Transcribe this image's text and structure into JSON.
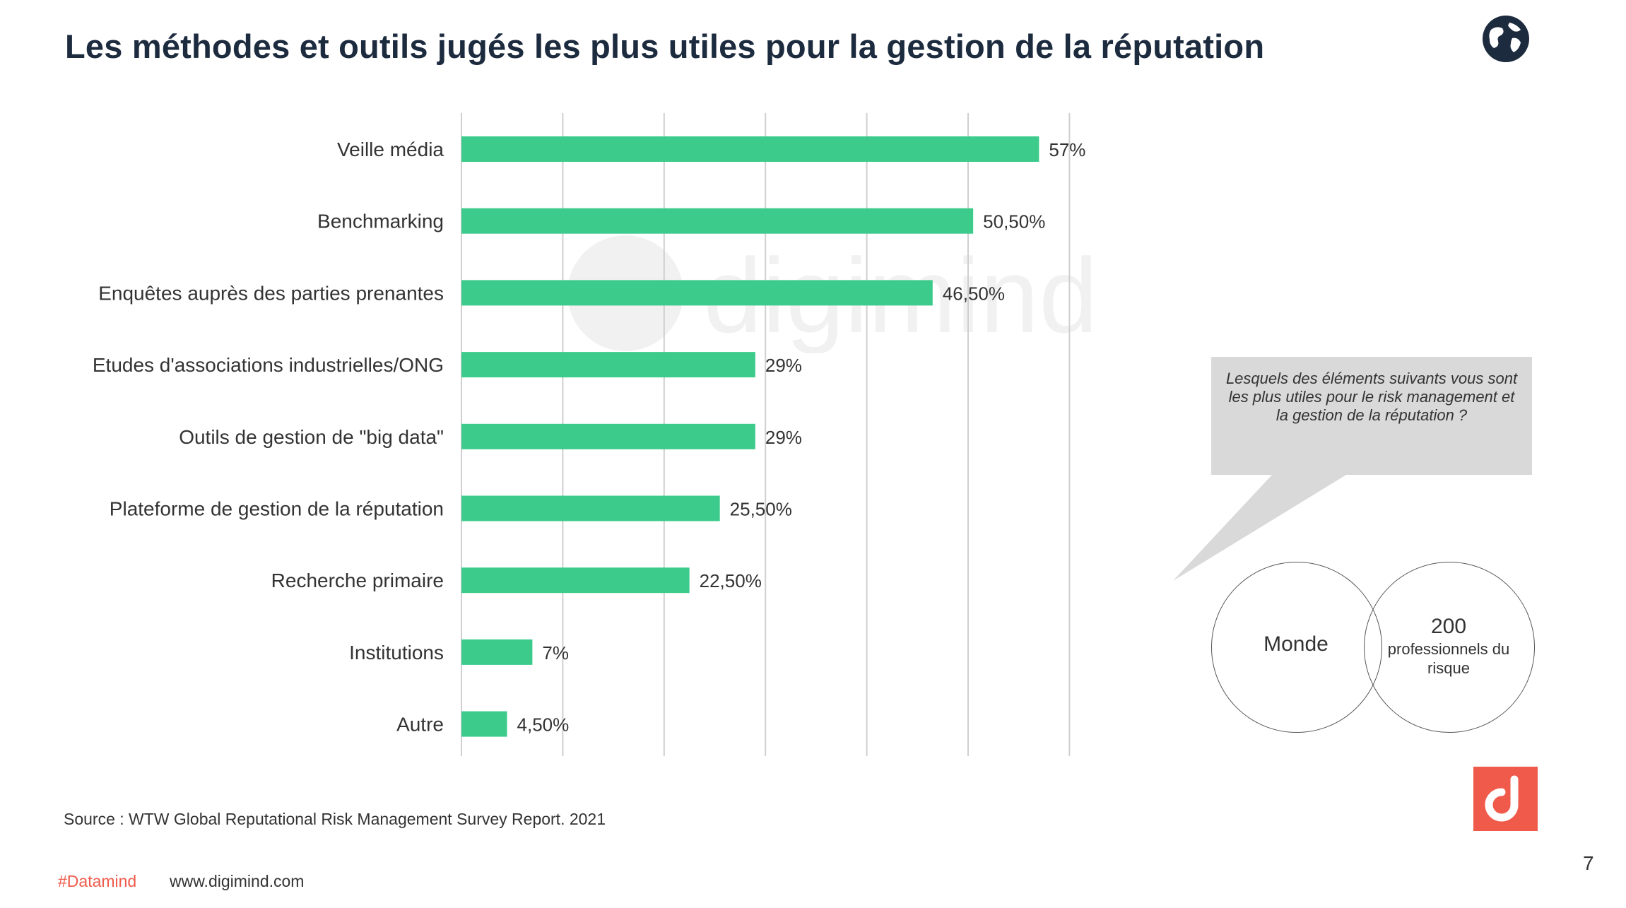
{
  "page": {
    "title": "Les méthodes et outils jugés les plus utiles pour la gestion de la réputation",
    "source": "Source : WTW Global Reputational Risk Management Survey Report. 2021",
    "hashtag": "#Datamind",
    "website": "www.digimind.com",
    "page_number": "7",
    "watermark_text": "digimind"
  },
  "callout": {
    "question": "Lesquels des éléments suivants vous sont les plus utiles pour le risk management et la gestion de la réputation ?",
    "scope": "Monde",
    "sample_count": "200",
    "sample_label": "professionnels du risque"
  },
  "colors": {
    "bar": "#3dcb8c",
    "accent": "#f05a4a",
    "title": "#1d2b3f",
    "bubble": "#d9d9d9",
    "grid": "#cfcfcf"
  },
  "icons": {
    "globe": "globe-icon",
    "logo": "digimind-logo-icon"
  },
  "chart_data": {
    "type": "bar",
    "orientation": "horizontal",
    "title": "Les méthodes et outils jugés les plus utiles pour la gestion de la réputation",
    "categories": [
      "Veille média",
      "Benchmarking",
      "Enquêtes auprès des parties prenantes",
      "Etudes d'associations industrielles/ONG",
      "Outils de gestion de \"big data\"",
      "Plateforme de gestion de la réputation",
      "Recherche primaire",
      "Institutions",
      "Autre"
    ],
    "values": [
      57,
      50.5,
      46.5,
      29,
      29,
      25.5,
      22.5,
      7,
      4.5
    ],
    "data_labels": [
      "57%",
      "50,50%",
      "46,50%",
      "29%",
      "29%",
      "25,50%",
      "22,50%",
      "7%",
      "4,50%"
    ],
    "xlim": [
      0,
      60
    ],
    "grid": true,
    "legend": "none"
  }
}
